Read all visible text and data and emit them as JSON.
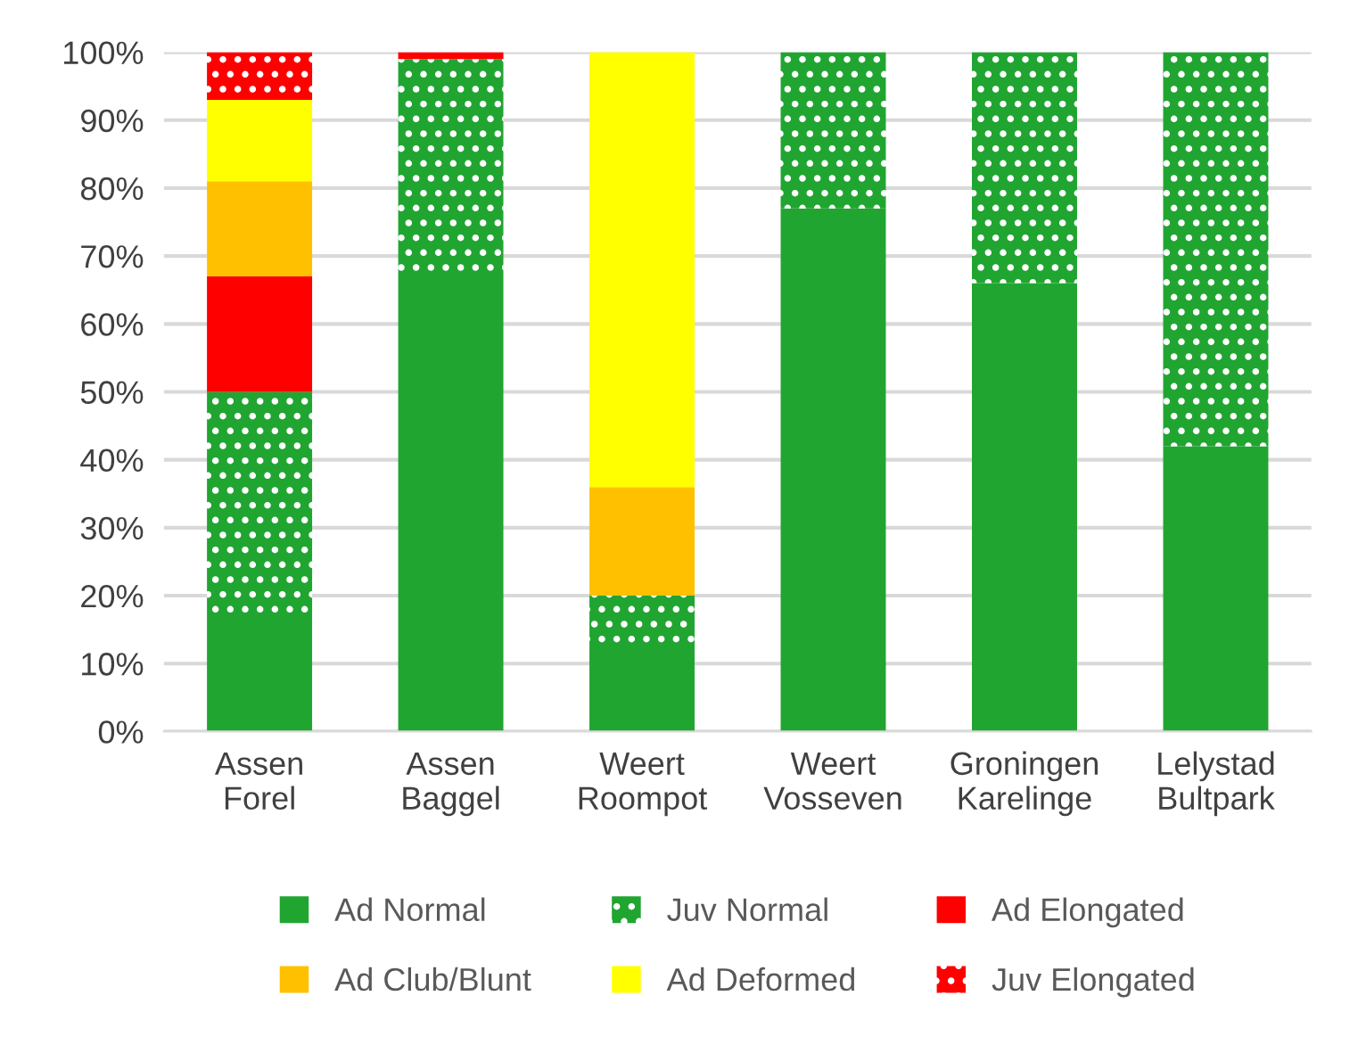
{
  "chart_data": {
    "type": "bar",
    "stacked": true,
    "categories": [
      "Assen\nForel",
      "Assen\nBaggel",
      "Weert\nRoompot",
      "Weert\nVosseven",
      "Groningen\nKarelinge",
      "Lelystad\nBultpark"
    ],
    "series": [
      {
        "name": "Ad Normal",
        "color": "#21a531",
        "values": [
          17,
          67,
          12,
          77,
          66,
          42
        ]
      },
      {
        "name": "Juv Normal",
        "color": "#21a531",
        "values": [
          33,
          32,
          8,
          23,
          34,
          58
        ]
      },
      {
        "name": "Ad Elongated",
        "color": "#ff0000",
        "values": [
          17,
          1,
          0,
          0,
          0,
          0
        ]
      },
      {
        "name": "Ad Club/Blunt",
        "color": "#ffc000",
        "values": [
          14,
          0,
          16,
          0,
          0,
          0
        ]
      },
      {
        "name": "Ad Deformed",
        "color": "#ffff00",
        "values": [
          12,
          0,
          64,
          0,
          0,
          0
        ]
      },
      {
        "name": "Juv Elongated",
        "color": "#ff0000",
        "values": [
          7,
          0,
          0,
          0,
          0,
          0
        ]
      }
    ],
    "ylim": [
      0,
      100
    ],
    "yticks": [
      {
        "value": 0,
        "label": "0%"
      },
      {
        "value": 10,
        "label": "10%"
      },
      {
        "value": 20,
        "label": "20%"
      },
      {
        "value": 30,
        "label": "30%"
      },
      {
        "value": 40,
        "label": "40%"
      },
      {
        "value": 50,
        "label": "50%"
      },
      {
        "value": 60,
        "label": "60%"
      },
      {
        "value": 70,
        "label": "70%"
      },
      {
        "value": 80,
        "label": "80%"
      },
      {
        "value": 90,
        "label": "90%"
      },
      {
        "value": 100,
        "label": "100%"
      }
    ],
    "grid": "y",
    "legend": "bottom"
  }
}
